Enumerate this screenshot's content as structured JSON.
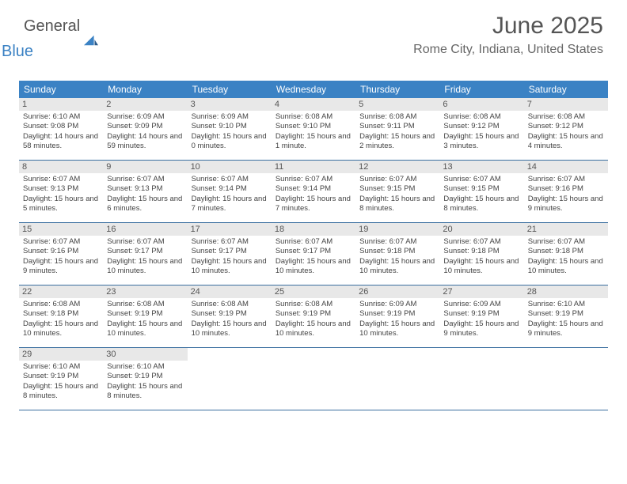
{
  "brand": {
    "part1": "General",
    "part2": "Blue"
  },
  "title": "June 2025",
  "location": "Rome City, Indiana, United States",
  "colors": {
    "header_bg": "#3b82c4",
    "header_text": "#ffffff",
    "daynum_bg": "#e8e8e8",
    "rule": "#3b6fa0",
    "brand_blue": "#3b82c4"
  },
  "dayHeaders": [
    "Sunday",
    "Monday",
    "Tuesday",
    "Wednesday",
    "Thursday",
    "Friday",
    "Saturday"
  ],
  "weeks": [
    [
      {
        "n": "1",
        "sr": "6:10 AM",
        "ss": "9:08 PM",
        "dl": "14 hours and 58 minutes."
      },
      {
        "n": "2",
        "sr": "6:09 AM",
        "ss": "9:09 PM",
        "dl": "14 hours and 59 minutes."
      },
      {
        "n": "3",
        "sr": "6:09 AM",
        "ss": "9:10 PM",
        "dl": "15 hours and 0 minutes."
      },
      {
        "n": "4",
        "sr": "6:08 AM",
        "ss": "9:10 PM",
        "dl": "15 hours and 1 minute."
      },
      {
        "n": "5",
        "sr": "6:08 AM",
        "ss": "9:11 PM",
        "dl": "15 hours and 2 minutes."
      },
      {
        "n": "6",
        "sr": "6:08 AM",
        "ss": "9:12 PM",
        "dl": "15 hours and 3 minutes."
      },
      {
        "n": "7",
        "sr": "6:08 AM",
        "ss": "9:12 PM",
        "dl": "15 hours and 4 minutes."
      }
    ],
    [
      {
        "n": "8",
        "sr": "6:07 AM",
        "ss": "9:13 PM",
        "dl": "15 hours and 5 minutes."
      },
      {
        "n": "9",
        "sr": "6:07 AM",
        "ss": "9:13 PM",
        "dl": "15 hours and 6 minutes."
      },
      {
        "n": "10",
        "sr": "6:07 AM",
        "ss": "9:14 PM",
        "dl": "15 hours and 7 minutes."
      },
      {
        "n": "11",
        "sr": "6:07 AM",
        "ss": "9:14 PM",
        "dl": "15 hours and 7 minutes."
      },
      {
        "n": "12",
        "sr": "6:07 AM",
        "ss": "9:15 PM",
        "dl": "15 hours and 8 minutes."
      },
      {
        "n": "13",
        "sr": "6:07 AM",
        "ss": "9:15 PM",
        "dl": "15 hours and 8 minutes."
      },
      {
        "n": "14",
        "sr": "6:07 AM",
        "ss": "9:16 PM",
        "dl": "15 hours and 9 minutes."
      }
    ],
    [
      {
        "n": "15",
        "sr": "6:07 AM",
        "ss": "9:16 PM",
        "dl": "15 hours and 9 minutes."
      },
      {
        "n": "16",
        "sr": "6:07 AM",
        "ss": "9:17 PM",
        "dl": "15 hours and 10 minutes."
      },
      {
        "n": "17",
        "sr": "6:07 AM",
        "ss": "9:17 PM",
        "dl": "15 hours and 10 minutes."
      },
      {
        "n": "18",
        "sr": "6:07 AM",
        "ss": "9:17 PM",
        "dl": "15 hours and 10 minutes."
      },
      {
        "n": "19",
        "sr": "6:07 AM",
        "ss": "9:18 PM",
        "dl": "15 hours and 10 minutes."
      },
      {
        "n": "20",
        "sr": "6:07 AM",
        "ss": "9:18 PM",
        "dl": "15 hours and 10 minutes."
      },
      {
        "n": "21",
        "sr": "6:07 AM",
        "ss": "9:18 PM",
        "dl": "15 hours and 10 minutes."
      }
    ],
    [
      {
        "n": "22",
        "sr": "6:08 AM",
        "ss": "9:18 PM",
        "dl": "15 hours and 10 minutes."
      },
      {
        "n": "23",
        "sr": "6:08 AM",
        "ss": "9:19 PM",
        "dl": "15 hours and 10 minutes."
      },
      {
        "n": "24",
        "sr": "6:08 AM",
        "ss": "9:19 PM",
        "dl": "15 hours and 10 minutes."
      },
      {
        "n": "25",
        "sr": "6:08 AM",
        "ss": "9:19 PM",
        "dl": "15 hours and 10 minutes."
      },
      {
        "n": "26",
        "sr": "6:09 AM",
        "ss": "9:19 PM",
        "dl": "15 hours and 10 minutes."
      },
      {
        "n": "27",
        "sr": "6:09 AM",
        "ss": "9:19 PM",
        "dl": "15 hours and 9 minutes."
      },
      {
        "n": "28",
        "sr": "6:10 AM",
        "ss": "9:19 PM",
        "dl": "15 hours and 9 minutes."
      }
    ],
    [
      {
        "n": "29",
        "sr": "6:10 AM",
        "ss": "9:19 PM",
        "dl": "15 hours and 8 minutes."
      },
      {
        "n": "30",
        "sr": "6:10 AM",
        "ss": "9:19 PM",
        "dl": "15 hours and 8 minutes."
      },
      null,
      null,
      null,
      null,
      null
    ]
  ],
  "labels": {
    "sunrise": "Sunrise: ",
    "sunset": "Sunset: ",
    "daylight": "Daylight: "
  }
}
